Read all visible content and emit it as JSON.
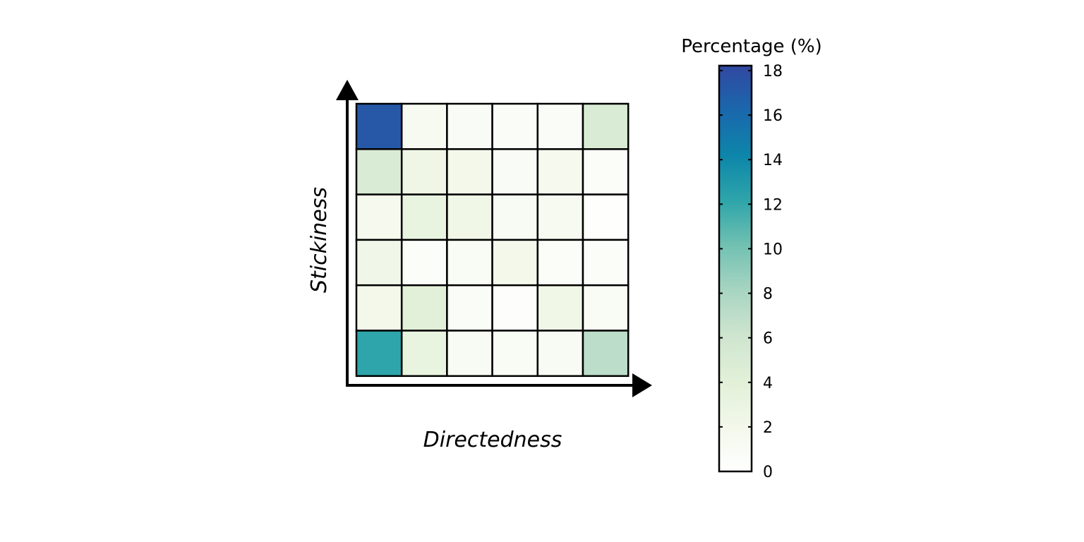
{
  "chart_data": {
    "type": "heatmap",
    "xlabel": "Directedness",
    "ylabel": "Stickiness",
    "rows": 6,
    "cols": 6,
    "values": [
      [
        17.0,
        1.4,
        0.9,
        0.8,
        0.8,
        5.0
      ],
      [
        5.0,
        2.4,
        1.9,
        0.9,
        1.6,
        0.7
      ],
      [
        1.6,
        3.1,
        2.3,
        1.1,
        1.3,
        0.2
      ],
      [
        2.2,
        0.6,
        1.0,
        1.9,
        0.6,
        0.7
      ],
      [
        1.9,
        3.9,
        0.8,
        0.3,
        2.3,
        1.0
      ],
      [
        12.0,
        3.1,
        1.1,
        1.0,
        1.1,
        7.0
      ]
    ],
    "colorbar": {
      "title": "Percentage (%)",
      "min": 0,
      "max": 18,
      "ticks": [
        "0",
        "2",
        "4",
        "6",
        "8",
        "10",
        "12",
        "14",
        "16",
        "18"
      ],
      "colors": [
        "#ffffff",
        "#f2f8ea",
        "#e2f0d8",
        "#cfe5cf",
        "#a8d5c2",
        "#72c1b2",
        "#2ea5aa",
        "#0d86aa",
        "#1a68ac",
        "#3148a1"
      ]
    }
  }
}
